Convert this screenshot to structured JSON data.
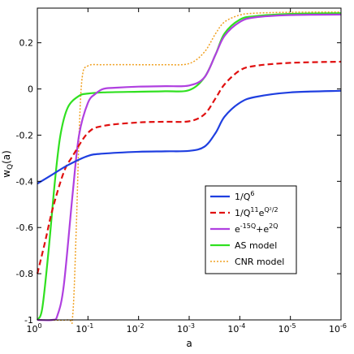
{
  "chart_data": {
    "type": "line",
    "xlabel": "a",
    "ylabel": "w",
    "ylabel_sub": "Q",
    "ylabel_suffix": "(a)",
    "x_scale": "log",
    "x_reversed": true,
    "xlim": [
      1,
      1e-06
    ],
    "ylim": [
      -1,
      0.35
    ],
    "x_ticks": [
      {
        "value": 1,
        "base": "10",
        "exp": "0"
      },
      {
        "value": 0.1,
        "base": "10",
        "exp": "-1"
      },
      {
        "value": 0.01,
        "base": "10",
        "exp": "-2"
      },
      {
        "value": 0.001,
        "base": "10",
        "exp": "-3"
      },
      {
        "value": 0.0001,
        "base": "10",
        "exp": "-4"
      },
      {
        "value": 1e-05,
        "base": "10",
        "exp": "-5"
      },
      {
        "value": 1e-06,
        "base": "10",
        "exp": "-6"
      }
    ],
    "y_ticks": [
      "-1",
      "-0.8",
      "-0.6",
      "-0.4",
      "-0.2",
      "0",
      "0.2"
    ],
    "y_tick_values": [
      -1,
      -0.8,
      -0.6,
      -0.4,
      -0.2,
      0,
      0.2
    ],
    "grid": false,
    "legend_position": "center-right",
    "series": [
      {
        "name": "1/Q^6",
        "label_parts": [
          {
            "t": "1/Q"
          },
          {
            "t": "6",
            "sup": true
          }
        ],
        "color": "#1f3fe0",
        "dash": "solid",
        "x": [
          1,
          0.5,
          0.25,
          0.1,
          0.05,
          0.01,
          0.003,
          0.001,
          0.0005,
          0.0003,
          0.0002,
          0.0001,
          5e-05,
          1e-05,
          1e-06
        ],
        "y": [
          -0.41,
          -0.37,
          -0.33,
          -0.29,
          -0.28,
          -0.272,
          -0.27,
          -0.268,
          -0.25,
          -0.19,
          -0.12,
          -0.06,
          -0.035,
          -0.015,
          -0.008
        ]
      },
      {
        "name": "1/Q^11 e^(Q^2/2)",
        "label_parts": [
          {
            "t": "1/Q"
          },
          {
            "t": "11",
            "sup": true
          },
          {
            "t": "e"
          },
          {
            "t": "Q²/2",
            "sup": true
          }
        ],
        "color": "#e01010",
        "dash": "dashed",
        "x": [
          1,
          0.7,
          0.5,
          0.3,
          0.2,
          0.1,
          0.05,
          0.01,
          0.003,
          0.001,
          0.0005,
          0.0003,
          0.0002,
          0.0001,
          5e-05,
          1e-05,
          1e-06
        ],
        "y": [
          -0.8,
          -0.66,
          -0.52,
          -0.36,
          -0.29,
          -0.19,
          -0.16,
          -0.145,
          -0.142,
          -0.14,
          -0.11,
          -0.04,
          0.02,
          0.08,
          0.1,
          0.113,
          0.118
        ]
      },
      {
        "name": "e^(-15Q)+e^(2Q)",
        "label_parts": [
          {
            "t": "e"
          },
          {
            "t": "-15Q",
            "sup": true
          },
          {
            "t": "+e"
          },
          {
            "t": "2Q",
            "sup": true
          }
        ],
        "color": "#b040e0",
        "dash": "solid",
        "x": [
          1,
          0.5,
          0.4,
          0.3,
          0.2,
          0.15,
          0.1,
          0.07,
          0.05,
          0.03,
          0.01,
          0.003,
          0.001,
          0.0005,
          0.0003,
          0.0002,
          0.0001,
          5e-05,
          1e-05,
          1e-06
        ],
        "y": [
          -1,
          -1,
          -0.98,
          -0.85,
          -0.45,
          -0.2,
          -0.06,
          -0.02,
          0,
          0.005,
          0.01,
          0.012,
          0.015,
          0.05,
          0.15,
          0.23,
          0.29,
          0.31,
          0.32,
          0.322
        ]
      },
      {
        "name": "AS model",
        "label_parts": [
          {
            "t": "AS model"
          }
        ],
        "color": "#30e020",
        "dash": "solid",
        "x": [
          1,
          0.8,
          0.6,
          0.45,
          0.35,
          0.25,
          0.15,
          0.1,
          0.05,
          0.01,
          0.003,
          0.001,
          0.0005,
          0.0003,
          0.0002,
          0.0001,
          5e-05,
          1e-05,
          1e-06
        ],
        "y": [
          -1,
          -0.95,
          -0.7,
          -0.4,
          -0.2,
          -0.08,
          -0.03,
          -0.02,
          -0.015,
          -0.012,
          -0.01,
          -0.005,
          0.05,
          0.15,
          0.24,
          0.3,
          0.315,
          0.325,
          0.328
        ]
      },
      {
        "name": "CNR model",
        "label_parts": [
          {
            "t": "CNR model"
          }
        ],
        "color": "#f0a020",
        "dash": "dotted",
        "x": [
          1,
          0.25,
          0.2,
          0.17,
          0.15,
          0.13,
          0.1,
          0.05,
          0.01,
          0.003,
          0.001,
          0.0005,
          0.0003,
          0.0002,
          0.0001,
          5e-05,
          1e-05,
          1e-06
        ],
        "y": [
          -1,
          -1,
          -0.98,
          -0.6,
          -0.2,
          0.05,
          0.1,
          0.105,
          0.105,
          0.105,
          0.11,
          0.16,
          0.24,
          0.29,
          0.32,
          0.328,
          0.332,
          0.333
        ]
      }
    ]
  }
}
